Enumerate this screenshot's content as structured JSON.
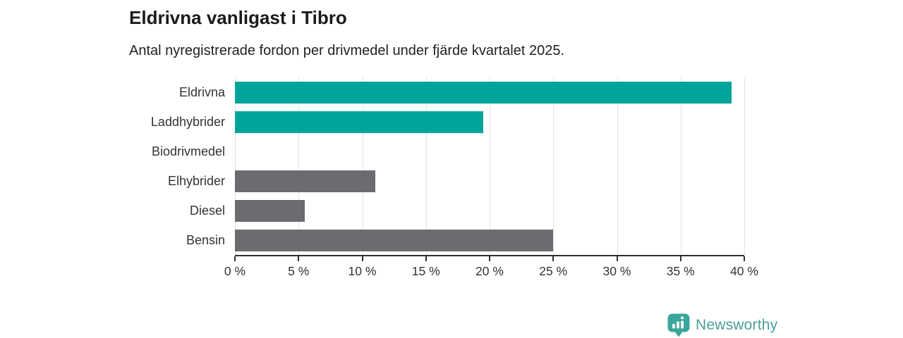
{
  "header": {
    "title": "Eldrivna vanligast i Tibro",
    "subtitle": "Antal nyregistrerade fordon per drivmedel under fjärde kvartalet 2025."
  },
  "chart_data": {
    "type": "bar",
    "orientation": "horizontal",
    "title": "Eldrivna vanligast i Tibro",
    "subtitle": "Antal nyregistrerade fordon per drivmedel under fjärde kvartalet 2025.",
    "categories": [
      "Eldrivna",
      "Laddhybrider",
      "Biodrivmedel",
      "Elhybrider",
      "Diesel",
      "Bensin"
    ],
    "values": [
      39,
      19.5,
      0,
      11,
      5.5,
      25
    ],
    "unit": "%",
    "bar_colors": [
      "#00a49b",
      "#00a49b",
      "#6b6c70",
      "#6b6c70",
      "#6b6c70",
      "#6b6c70"
    ],
    "xlim": [
      0,
      40
    ],
    "x_ticks": [
      0,
      5,
      10,
      15,
      20,
      25,
      30,
      35,
      40
    ],
    "x_tick_labels": [
      "0 %",
      "5 %",
      "10 %",
      "15 %",
      "20 %",
      "25 %",
      "30 %",
      "35 %",
      "40 %"
    ],
    "grid": true,
    "legend": false
  },
  "footer": {
    "brand": "Newsworthy"
  },
  "colors": {
    "accent_teal": "#00a49b",
    "neutral_gray": "#6b6c70",
    "grid": "#e2e2e2",
    "axis": "#2f2f2f",
    "text_dark": "#1b1b1b",
    "brand_teal": "#3ba69d"
  }
}
